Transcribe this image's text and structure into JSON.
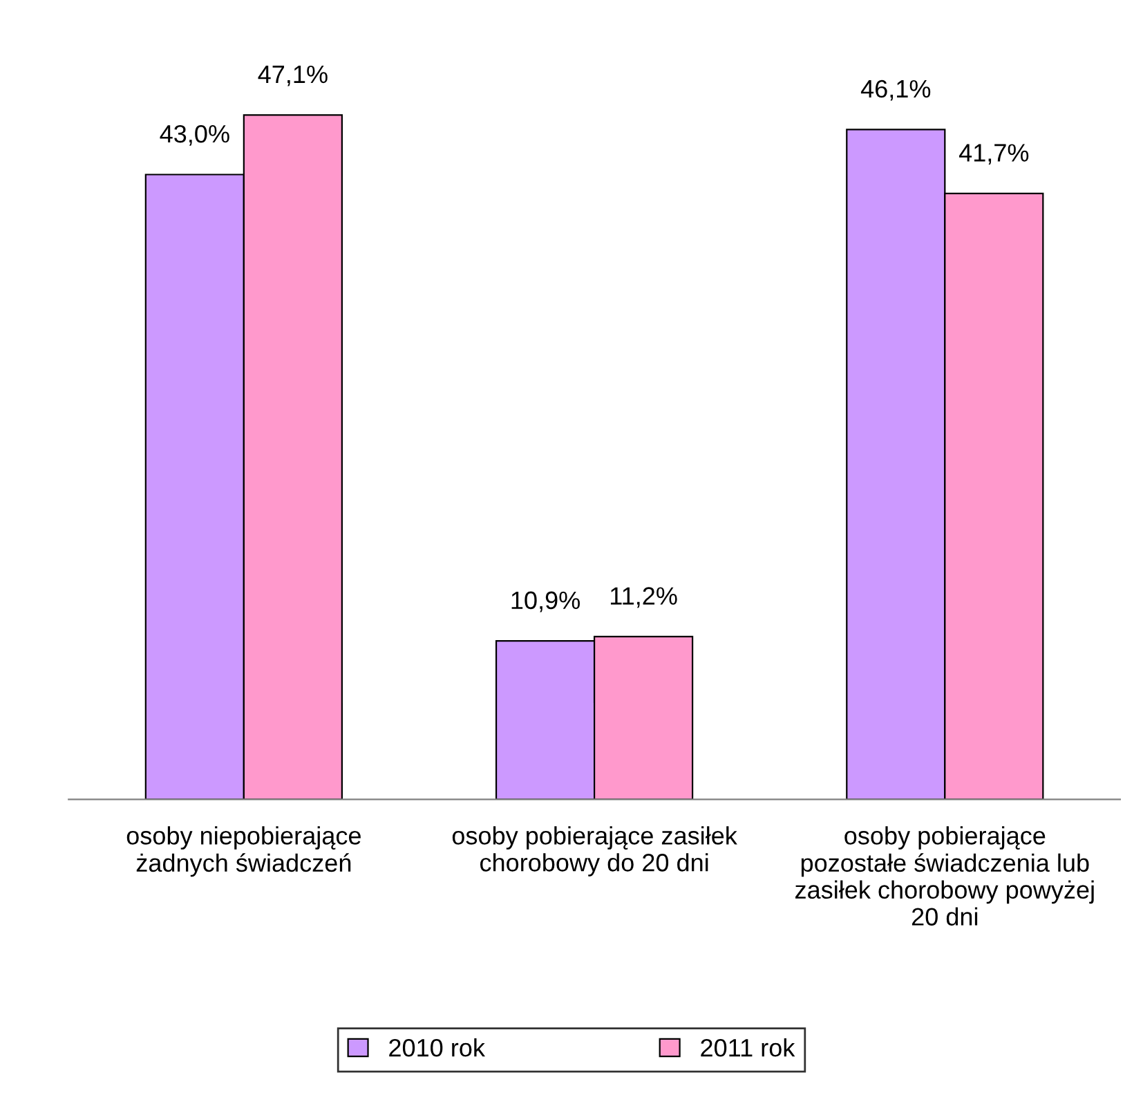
{
  "chart_data": {
    "type": "bar",
    "categories": [
      "osoby niepobierające\nżadnych świadczeń",
      "osoby pobierające zasiłek\nchorobowy do 20 dni",
      "osoby pobierające\npozostałe świadczenia lub\nzasiłek chorobowy powyżej\n20 dni"
    ],
    "series": [
      {
        "name": "2010 rok",
        "color": "#cc99ff",
        "values": [
          43.0,
          10.9,
          46.1
        ],
        "value_labels": [
          "43,0%",
          "10,9%",
          "46,1%"
        ]
      },
      {
        "name": "2011 rok",
        "color": "#ff99cc",
        "values": [
          47.1,
          11.2,
          41.7
        ],
        "value_labels": [
          "47,1%",
          "11,2%",
          "41,7%"
        ]
      }
    ],
    "legend": "bottom",
    "grid": false
  }
}
